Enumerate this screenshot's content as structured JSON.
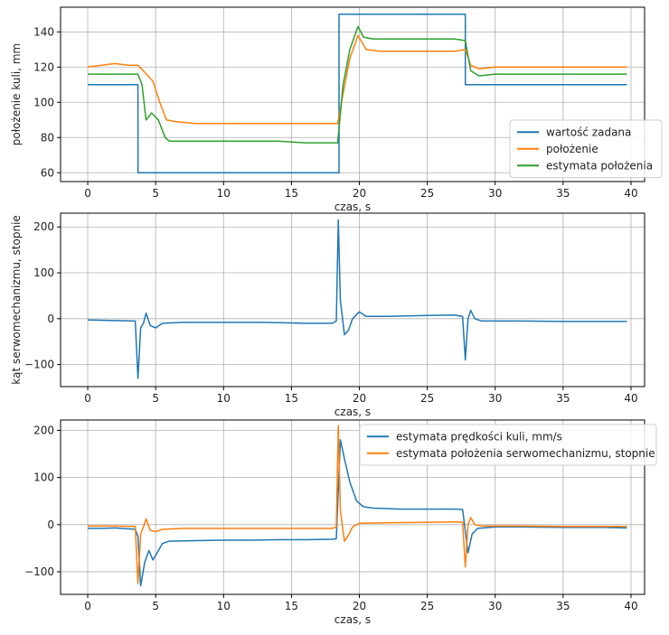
{
  "chart_data": [
    {
      "type": "line",
      "xlabel": "czas, s",
      "ylabel": "położenie kuli, mm",
      "xlim": [
        -2,
        41
      ],
      "ylim": [
        55,
        154
      ],
      "xticks": [
        0,
        5,
        10,
        15,
        20,
        25,
        30,
        35,
        40
      ],
      "yticks": [
        60,
        80,
        100,
        120,
        140
      ],
      "grid": true,
      "legend_position": "lower-right",
      "series": [
        {
          "name": "wartość zadana",
          "color": "#1f77b4",
          "points": [
            [
              0,
              110
            ],
            [
              3.7,
              110
            ],
            [
              3.7,
              60
            ],
            [
              18.5,
              60
            ],
            [
              18.5,
              150
            ],
            [
              27.8,
              150
            ],
            [
              27.8,
              110
            ],
            [
              39.7,
              110
            ]
          ]
        },
        {
          "name": "położenie",
          "color": "#ff7f0e",
          "points": [
            [
              0,
              120
            ],
            [
              1,
              121
            ],
            [
              2,
              122
            ],
            [
              3,
              121
            ],
            [
              3.7,
              121
            ],
            [
              4.2,
              117
            ],
            [
              4.8,
              112
            ],
            [
              5.3,
              100
            ],
            [
              5.8,
              90
            ],
            [
              6.5,
              89
            ],
            [
              8,
              88
            ],
            [
              10,
              88
            ],
            [
              12,
              88
            ],
            [
              14,
              88
            ],
            [
              16,
              88
            ],
            [
              18,
              88
            ],
            [
              18.4,
              88
            ],
            [
              18.8,
              105
            ],
            [
              19.3,
              125
            ],
            [
              19.9,
              138
            ],
            [
              20.5,
              130
            ],
            [
              21.5,
              129
            ],
            [
              23,
              129
            ],
            [
              25,
              129
            ],
            [
              27,
              129
            ],
            [
              27.8,
              130
            ],
            [
              28.2,
              121
            ],
            [
              28.8,
              119
            ],
            [
              30,
              120
            ],
            [
              32,
              120
            ],
            [
              34,
              120
            ],
            [
              36,
              120
            ],
            [
              38,
              120
            ],
            [
              39.7,
              120
            ]
          ]
        },
        {
          "name": "estymata położenia",
          "color": "#2ca02c",
          "points": [
            [
              0,
              116
            ],
            [
              3.7,
              116
            ],
            [
              4,
              110
            ],
            [
              4.3,
              90
            ],
            [
              4.7,
              94
            ],
            [
              5.2,
              90
            ],
            [
              5.7,
              80
            ],
            [
              6,
              78
            ],
            [
              8,
              78
            ],
            [
              10,
              78
            ],
            [
              12,
              78
            ],
            [
              14,
              78
            ],
            [
              16,
              77
            ],
            [
              18,
              77
            ],
            [
              18.4,
              77
            ],
            [
              18.8,
              110
            ],
            [
              19.3,
              130
            ],
            [
              19.9,
              143
            ],
            [
              20.3,
              137
            ],
            [
              21,
              136
            ],
            [
              23,
              136
            ],
            [
              25,
              136
            ],
            [
              27,
              136
            ],
            [
              27.8,
              135
            ],
            [
              28.2,
              118
            ],
            [
              28.8,
              115
            ],
            [
              30,
              116
            ],
            [
              32,
              116
            ],
            [
              34,
              116
            ],
            [
              36,
              116
            ],
            [
              38,
              116
            ],
            [
              39.7,
              116
            ]
          ]
        }
      ]
    },
    {
      "type": "line",
      "xlabel": "czas, s",
      "ylabel": "kąt serwomechanizmu, stopnie",
      "xlim": [
        -2,
        41
      ],
      "ylim": [
        -148,
        230
      ],
      "xticks": [
        0,
        5,
        10,
        15,
        20,
        25,
        30,
        35,
        40
      ],
      "yticks": [
        -100,
        0,
        100,
        200
      ],
      "grid": true,
      "series": [
        {
          "name": "kąt serwomechanizmu",
          "color": "#1f77b4",
          "points": [
            [
              0,
              -3
            ],
            [
              2,
              -4
            ],
            [
              3.5,
              -5
            ],
            [
              3.7,
              -130
            ],
            [
              3.9,
              -20
            ],
            [
              4.1,
              -10
            ],
            [
              4.3,
              12
            ],
            [
              4.6,
              -15
            ],
            [
              5,
              -20
            ],
            [
              5.5,
              -10
            ],
            [
              7,
              -8
            ],
            [
              10,
              -8
            ],
            [
              13,
              -8
            ],
            [
              16,
              -10
            ],
            [
              18,
              -10
            ],
            [
              18.3,
              -5
            ],
            [
              18.45,
              215
            ],
            [
              18.6,
              40
            ],
            [
              18.9,
              -35
            ],
            [
              19.2,
              -25
            ],
            [
              19.5,
              0
            ],
            [
              20,
              15
            ],
            [
              20.5,
              5
            ],
            [
              22,
              5
            ],
            [
              25,
              7
            ],
            [
              27,
              8
            ],
            [
              27.6,
              5
            ],
            [
              27.8,
              -90
            ],
            [
              28,
              0
            ],
            [
              28.2,
              18
            ],
            [
              28.5,
              0
            ],
            [
              29,
              -5
            ],
            [
              32,
              -5
            ],
            [
              35,
              -6
            ],
            [
              38,
              -6
            ],
            [
              39.7,
              -6
            ]
          ]
        }
      ]
    },
    {
      "type": "line",
      "xlabel": "czas, s",
      "ylabel": "",
      "xlim": [
        -2,
        41
      ],
      "ylim": [
        -148,
        222
      ],
      "xticks": [
        0,
        5,
        10,
        15,
        20,
        25,
        30,
        35,
        40
      ],
      "yticks": [
        -100,
        0,
        100,
        200
      ],
      "grid": true,
      "legend_position": "top-right",
      "series": [
        {
          "name": "estymata prędkości kuli, mm/s",
          "color": "#1f77b4",
          "points": [
            [
              0,
              -8
            ],
            [
              1,
              -8
            ],
            [
              2,
              -7
            ],
            [
              3,
              -9
            ],
            [
              3.5,
              -10
            ],
            [
              3.7,
              -25
            ],
            [
              3.9,
              -130
            ],
            [
              4.2,
              -80
            ],
            [
              4.5,
              -55
            ],
            [
              4.8,
              -75
            ],
            [
              5.2,
              -55
            ],
            [
              5.5,
              -40
            ],
            [
              6,
              -35
            ],
            [
              8,
              -34
            ],
            [
              10,
              -33
            ],
            [
              12,
              -33
            ],
            [
              14,
              -32
            ],
            [
              16,
              -32
            ],
            [
              18,
              -31
            ],
            [
              18.3,
              -30
            ],
            [
              18.6,
              180
            ],
            [
              18.9,
              140
            ],
            [
              19.3,
              90
            ],
            [
              19.8,
              50
            ],
            [
              20.3,
              38
            ],
            [
              21,
              35
            ],
            [
              23,
              33
            ],
            [
              25,
              33
            ],
            [
              27,
              33
            ],
            [
              27.6,
              32
            ],
            [
              28,
              -60
            ],
            [
              28.3,
              -20
            ],
            [
              28.7,
              -8
            ],
            [
              30,
              -5
            ],
            [
              32,
              -5
            ],
            [
              35,
              -6
            ],
            [
              38,
              -6
            ],
            [
              39.7,
              -7
            ]
          ]
        },
        {
          "name": "estymata położenia serwomechanizmu, stopnie",
          "color": "#ff7f0e",
          "points": [
            [
              0,
              -3
            ],
            [
              2,
              -3
            ],
            [
              3.5,
              -4
            ],
            [
              3.7,
              -125
            ],
            [
              3.9,
              -20
            ],
            [
              4.1,
              -5
            ],
            [
              4.3,
              12
            ],
            [
              4.6,
              -12
            ],
            [
              5,
              -15
            ],
            [
              5.5,
              -10
            ],
            [
              7,
              -8
            ],
            [
              10,
              -8
            ],
            [
              13,
              -8
            ],
            [
              16,
              -8
            ],
            [
              18,
              -8
            ],
            [
              18.3,
              -5
            ],
            [
              18.45,
              210
            ],
            [
              18.6,
              30
            ],
            [
              18.9,
              -35
            ],
            [
              19.2,
              -22
            ],
            [
              19.5,
              -5
            ],
            [
              20,
              3
            ],
            [
              22,
              4
            ],
            [
              25,
              5
            ],
            [
              27,
              6
            ],
            [
              27.6,
              5
            ],
            [
              27.8,
              -90
            ],
            [
              28,
              0
            ],
            [
              28.2,
              15
            ],
            [
              28.5,
              0
            ],
            [
              29,
              -3
            ],
            [
              32,
              -3
            ],
            [
              35,
              -4
            ],
            [
              38,
              -4
            ],
            [
              39.7,
              -4
            ]
          ]
        }
      ]
    }
  ]
}
